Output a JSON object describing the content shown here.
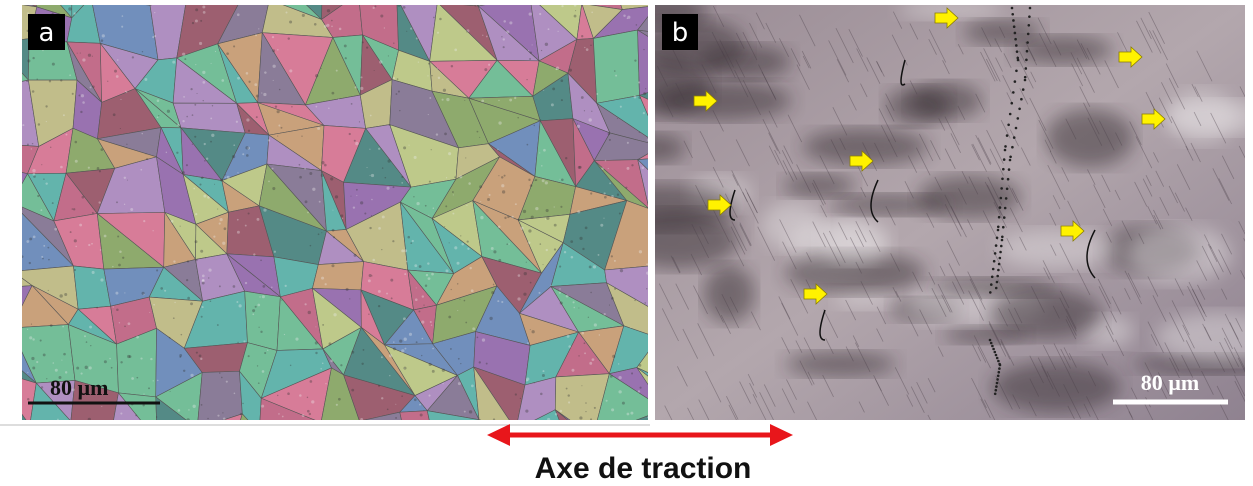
{
  "panels": [
    {
      "label": "a",
      "scale_bar": "80 µm"
    },
    {
      "label": "b",
      "scale_bar": "80 µm"
    }
  ],
  "caption": "Axe de traction"
}
